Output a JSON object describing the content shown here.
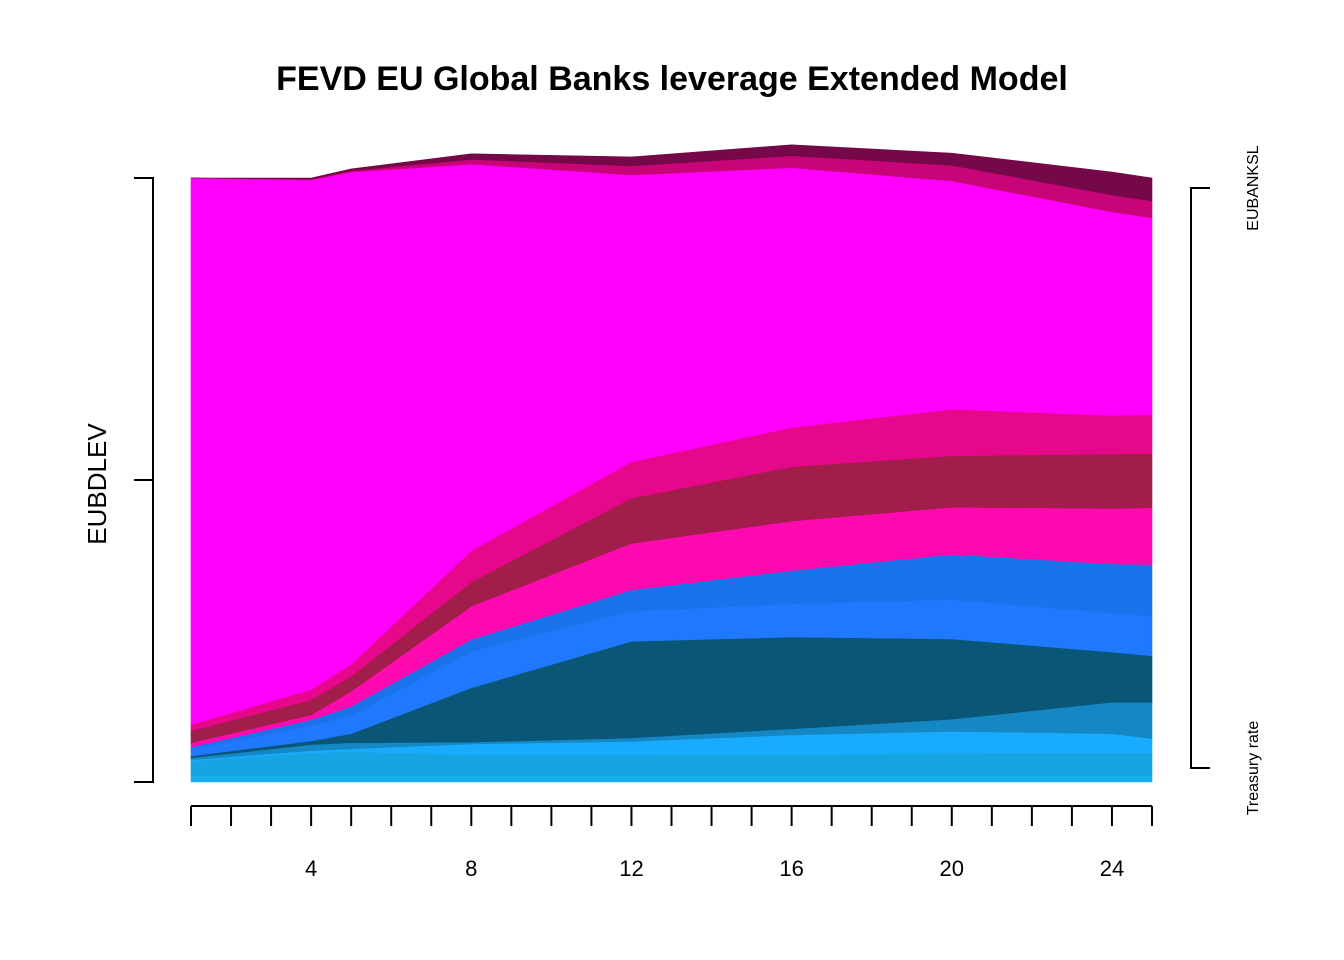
{
  "chart_data": {
    "type": "area",
    "title": "FEVD EU Global Banks leverage Extended Model",
    "ylabel": "EUBDLEV",
    "xlabel": "",
    "xlim": [
      1,
      25
    ],
    "ylim": [
      0,
      1
    ],
    "x_tick_labels": [
      "4",
      "8",
      "12",
      "16",
      "20",
      "24"
    ],
    "x_tick_label_values": [
      4,
      8,
      12,
      16,
      20,
      24
    ],
    "grid": false,
    "legend": {
      "placement": "right",
      "top_label": "EUBANKSL",
      "bottom_label": "Treasury rate"
    },
    "x": [
      1,
      4,
      5,
      8,
      12,
      16,
      20,
      24,
      25
    ],
    "series": [
      {
        "color": "#14B0EE",
        "values": [
          0.01,
          0.01,
          0.01,
          0.01,
          0.01,
          0.01,
          0.01,
          0.01,
          0.01
        ]
      },
      {
        "color": "#16A4E2",
        "values": [
          0.025,
          0.038,
          0.04,
          0.035,
          0.035,
          0.036,
          0.037,
          0.038,
          0.038
        ]
      },
      {
        "color": "#19ABFE",
        "values": [
          0.002,
          0.004,
          0.005,
          0.018,
          0.022,
          0.032,
          0.037,
          0.032,
          0.024
        ]
      },
      {
        "color": "#1587C4",
        "values": [
          0.003,
          0.01,
          0.01,
          0.003,
          0.006,
          0.01,
          0.02,
          0.052,
          0.06
        ]
      },
      {
        "color": "#0A5676",
        "values": [
          0.003,
          0.006,
          0.015,
          0.09,
          0.16,
          0.152,
          0.133,
          0.083,
          0.077
        ]
      },
      {
        "color": "#1F78FE",
        "values": [
          0.012,
          0.025,
          0.03,
          0.06,
          0.05,
          0.055,
          0.065,
          0.065,
          0.066
        ]
      },
      {
        "color": "#1A73EA",
        "values": [
          0.003,
          0.01,
          0.015,
          0.02,
          0.035,
          0.055,
          0.075,
          0.081,
          0.085
        ]
      },
      {
        "color": "#FF0AB0",
        "values": [
          0.007,
          0.008,
          0.025,
          0.055,
          0.077,
          0.082,
          0.078,
          0.092,
          0.094
        ]
      },
      {
        "color": "#A11D4A",
        "values": [
          0.02,
          0.025,
          0.025,
          0.04,
          0.075,
          0.09,
          0.085,
          0.09,
          0.09
        ]
      },
      {
        "color": "#E6088B",
        "values": [
          0.01,
          0.017,
          0.02,
          0.052,
          0.06,
          0.065,
          0.077,
          0.064,
          0.064
        ]
      },
      {
        "color": "#FF00FE",
        "values": [
          0.905,
          0.844,
          0.815,
          0.64,
          0.475,
          0.43,
          0.378,
          0.337,
          0.326
        ]
      },
      {
        "color": "#C80479",
        "values": [
          0.0,
          0.001,
          0.002,
          0.008,
          0.015,
          0.02,
          0.026,
          0.028,
          0.028
        ]
      },
      {
        "color": "#750848",
        "values": [
          0.0,
          0.002,
          0.003,
          0.009,
          0.015,
          0.018,
          0.02,
          0.038,
          0.038
        ]
      }
    ]
  }
}
